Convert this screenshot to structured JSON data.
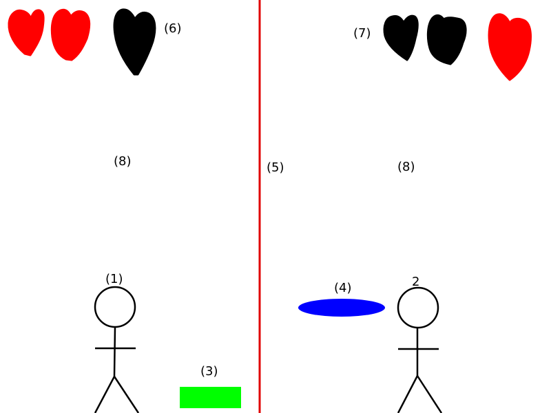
{
  "colors": {
    "background": "#ffffff",
    "divider": "#e00000",
    "heart_full": "#ff0000",
    "heart_empty": "#000000",
    "box": "#00ff00",
    "disc": "#0000ff",
    "stroke": "#000000"
  },
  "labels": {
    "player1": "(1)",
    "player2": "2",
    "box": "(3)",
    "disc": "(4)",
    "divider": "(5)",
    "left_hearts": "(6)",
    "right_hearts": "(7)",
    "left_field": "(8)",
    "right_field": "(8)"
  },
  "players": {
    "left": {
      "hearts": [
        "full",
        "full",
        "empty"
      ]
    },
    "right": {
      "hearts": [
        "empty",
        "empty",
        "full"
      ]
    }
  },
  "icons": {
    "heart": "heart-icon",
    "player": "stick-figure-icon"
  }
}
